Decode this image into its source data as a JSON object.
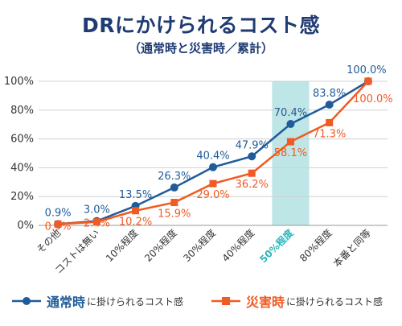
{
  "chart_data": {
    "type": "line",
    "title": "DRにかけられるコスト感",
    "subtitle": "（通常時と災害時／累計）",
    "categories": [
      "その他",
      "コストは無い",
      "10%程度",
      "20%程度",
      "30%程度",
      "40%程度",
      "50%程度",
      "80%程度",
      "本番と同等"
    ],
    "highlight_category": "50%程度",
    "highlight_color": "#2bb5b8",
    "y_ticks": [
      "0%",
      "20%",
      "40%",
      "60%",
      "80%",
      "100%"
    ],
    "ylim": [
      0,
      100
    ],
    "grid": true,
    "series": [
      {
        "name": "通常時",
        "legend_rest": "に掛けられるコスト感",
        "color": "#1f5c99",
        "marker": "circle",
        "values": [
          0.9,
          3.0,
          13.5,
          26.3,
          40.4,
          47.9,
          70.4,
          83.8,
          100.0
        ],
        "labels": [
          "0.9%",
          "3.0%",
          "13.5%",
          "26.3%",
          "40.4%",
          "47.9%",
          "70.4%",
          "83.8%",
          "100.0%"
        ]
      },
      {
        "name": "災害時",
        "legend_rest": "に掛けられるコスト感",
        "color": "#f15a22",
        "marker": "square",
        "values": [
          0.9,
          2.4,
          10.2,
          15.9,
          29.0,
          36.2,
          58.1,
          71.3,
          100.0
        ],
        "labels": [
          "0.9%",
          "2.4%",
          "10.2%",
          "15.9%",
          "29.0%",
          "36.2%",
          "58.1%",
          "71.3%",
          "100.0%"
        ]
      }
    ]
  }
}
